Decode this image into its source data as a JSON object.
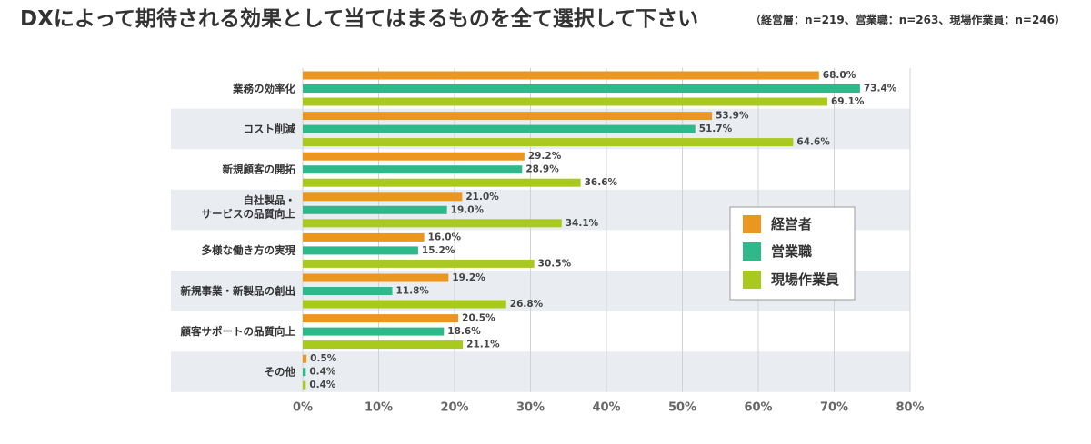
{
  "chart_data": {
    "type": "bar",
    "orientation": "horizontal",
    "title": "DXによって期待される効果として当てはまるものを全て選択して下さい",
    "subtitle": "（経営層：n=219、営業職：n=263、現場作業員：n=246）",
    "categories": [
      "業務の効率化",
      "コスト削減",
      "新規顧客の開拓",
      "自社製品・\nサービスの品質向上",
      "多様な働き方の実現",
      "新規事業・新製品の創出",
      "顧客サポートの品質向上",
      "その他"
    ],
    "series": [
      {
        "name": "経営者",
        "color": "#EB961E",
        "values": [
          68.0,
          53.9,
          29.2,
          21.0,
          16.0,
          19.2,
          20.5,
          0.5
        ]
      },
      {
        "name": "営業職",
        "color": "#2DB98A",
        "values": [
          73.4,
          51.7,
          28.9,
          19.0,
          15.2,
          11.8,
          18.6,
          0.4
        ]
      },
      {
        "name": "現場作業員",
        "color": "#A9C91F",
        "values": [
          69.1,
          64.6,
          36.6,
          34.1,
          30.5,
          26.8,
          21.1,
          0.4
        ]
      }
    ],
    "unit": "%",
    "xlim": [
      0,
      80
    ],
    "xticks": [
      0,
      10,
      20,
      30,
      40,
      50,
      60,
      70,
      80
    ],
    "grid": true,
    "legend": "inside-right",
    "row_band_color": "#E9EDF2"
  }
}
